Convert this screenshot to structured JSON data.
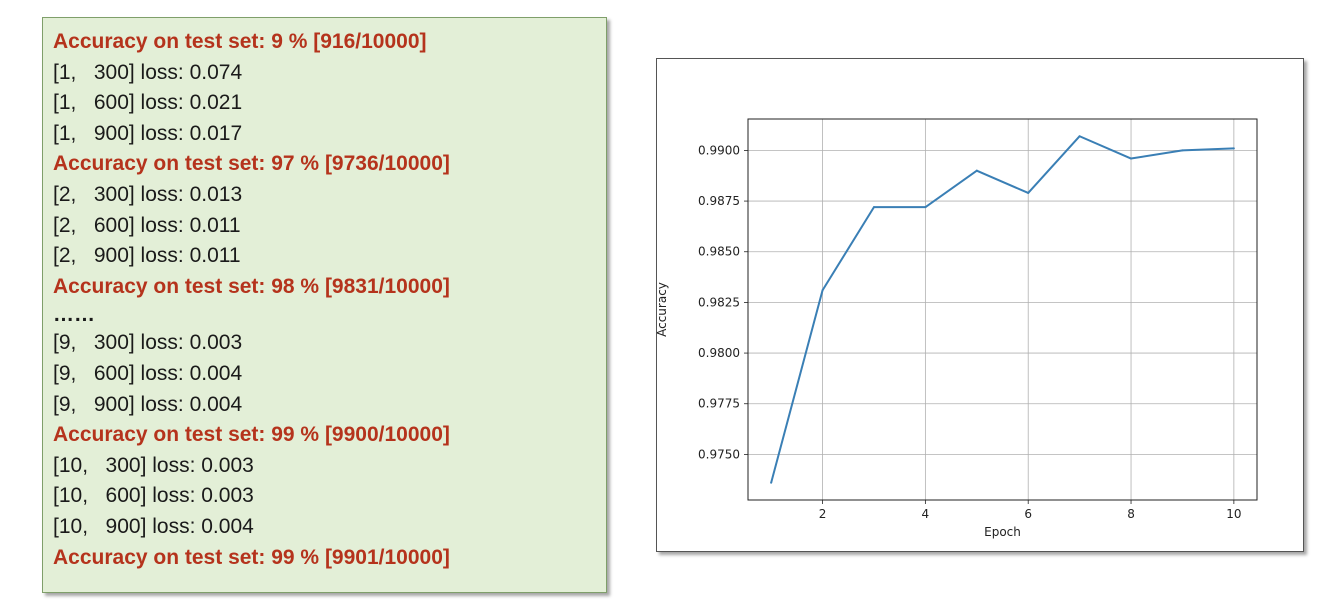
{
  "log": {
    "lines": [
      {
        "text": "Accuracy on test set: 9 % [916/10000]",
        "kind": "acc"
      },
      {
        "text": "[1,   300] loss: 0.074",
        "kind": "loss"
      },
      {
        "text": "[1,   600] loss: 0.021",
        "kind": "loss"
      },
      {
        "text": "[1,   900] loss: 0.017",
        "kind": "loss"
      },
      {
        "text": "Accuracy on test set: 97 % [9736/10000]",
        "kind": "acc"
      },
      {
        "text": "[2,   300] loss: 0.013",
        "kind": "loss"
      },
      {
        "text": "[2,   600] loss: 0.011",
        "kind": "loss"
      },
      {
        "text": "[2,   900] loss: 0.011",
        "kind": "loss"
      },
      {
        "text": "Accuracy on test set: 98 % [9831/10000]",
        "kind": "acc"
      },
      {
        "text": "……",
        "kind": "dots"
      },
      {
        "text": "[9,   300] loss: 0.003",
        "kind": "loss"
      },
      {
        "text": "[9,   600] loss: 0.004",
        "kind": "loss"
      },
      {
        "text": "[9,   900] loss: 0.004",
        "kind": "loss"
      },
      {
        "text": "Accuracy on test set: 99 % [9900/10000]",
        "kind": "acc"
      },
      {
        "text": "[10,   300] loss: 0.003",
        "kind": "loss"
      },
      {
        "text": "[10,   600] loss: 0.003",
        "kind": "loss"
      },
      {
        "text": "[10,   900] loss: 0.004",
        "kind": "loss"
      },
      {
        "text": "Accuracy on test set: 99 % [9901/10000]",
        "kind": "acc"
      }
    ],
    "colors": {
      "background": "#e3efd7",
      "accuracy_text": "#b5331c",
      "loss_text": "#1a1a1a"
    }
  },
  "chart_data": {
    "type": "line",
    "title": "",
    "xlabel": "Epoch",
    "ylabel": "Accuracy",
    "x": [
      1,
      2,
      3,
      4,
      5,
      6,
      7,
      8,
      9,
      10
    ],
    "series": [
      {
        "values": [
          0.9736,
          0.9831,
          0.9872,
          0.9872,
          0.989,
          0.9879,
          0.9907,
          0.9896,
          0.99,
          0.9901
        ],
        "color": "#3a7fb5"
      }
    ],
    "xticks": [
      2,
      4,
      6,
      8,
      10
    ],
    "xtick_labels": [
      "2",
      "4",
      "6",
      "8",
      "10"
    ],
    "yticks": [
      0.975,
      0.9775,
      0.98,
      0.9825,
      0.985,
      0.9875,
      0.99
    ],
    "ytick_labels": [
      "0.9750",
      "0.9775",
      "0.9800",
      "0.9825",
      "0.9850",
      "0.9875",
      "0.9900"
    ],
    "xlim": [
      0.55,
      10.45
    ],
    "ylim": [
      0.97275,
      0.99155
    ],
    "grid": true,
    "legend": "none"
  }
}
